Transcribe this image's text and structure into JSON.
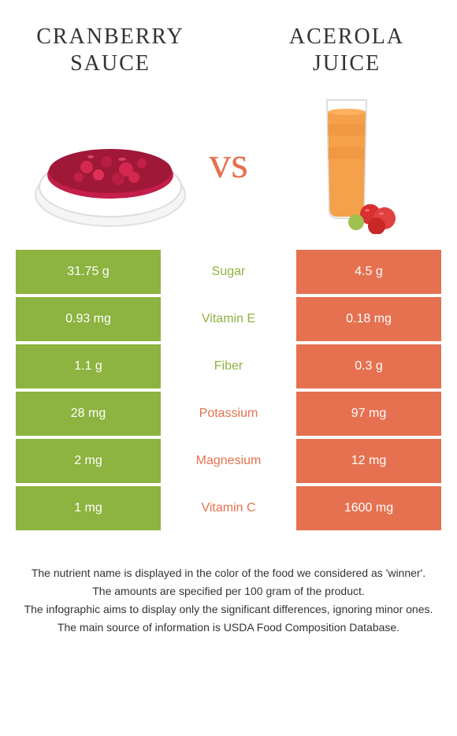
{
  "header": {
    "left_title_line1": "CRANBERRY",
    "left_title_line2": "SAUCE",
    "right_title_line1": "ACEROLA",
    "right_title_line2": "JUICE",
    "vs": "vs"
  },
  "colors": {
    "left_food": "#8db340",
    "right_food": "#e57150",
    "text": "#333333",
    "background": "#ffffff"
  },
  "rows": [
    {
      "left": "31.75 g",
      "label": "Sugar",
      "right": "4.5 g",
      "winner": "left"
    },
    {
      "left": "0.93 mg",
      "label": "Vitamin E",
      "right": "0.18 mg",
      "winner": "left"
    },
    {
      "left": "1.1 g",
      "label": "Fiber",
      "right": "0.3 g",
      "winner": "left"
    },
    {
      "left": "28 mg",
      "label": "Potassium",
      "right": "97 mg",
      "winner": "right"
    },
    {
      "left": "2 mg",
      "label": "Magnesium",
      "right": "12 mg",
      "winner": "right"
    },
    {
      "left": "1 mg",
      "label": "Vitamin C",
      "right": "1600 mg",
      "winner": "right"
    }
  ],
  "footer": {
    "line1": "The nutrient name is displayed in the color of the food we considered as 'winner'.",
    "line2": "The amounts are specified per 100 gram of the product.",
    "line3": "The infographic aims to display only the significant differences, ignoring minor ones.",
    "line4": "The main source of information is USDA Food Composition Database."
  }
}
